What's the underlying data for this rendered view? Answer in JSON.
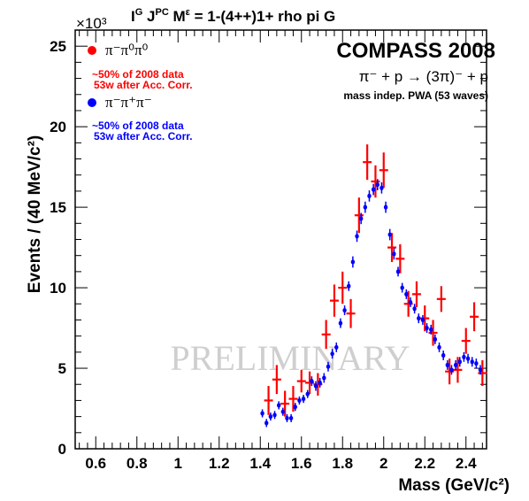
{
  "title": {
    "part1": "I",
    "sup1": "G",
    "part2": " J",
    "sup2": "PC",
    "part3": " M",
    "sup3": "ε",
    "part4": " = 1-(4++)1+ rho pi G"
  },
  "header": {
    "experiment": "COMPASS 2008",
    "reaction": "π⁻ + p  →  (3π)⁻ + p",
    "method": "mass indep. PWA (53 waves)"
  },
  "legend": [
    {
      "label": "π⁻π⁰π⁰",
      "note1": "~50% of 2008 data",
      "note2": "53w after Acc. Corr.",
      "color": "#ff0000"
    },
    {
      "label": "π⁻π⁺π⁻",
      "note1": "~50% of 2008 data",
      "note2": "53w after Acc. Corr.",
      "color": "#0000ff"
    }
  ],
  "watermark": "PRELIMINARY",
  "chart_data": {
    "type": "scatter",
    "xlabel": "Mass (GeV/c²)",
    "ylabel": "Events / (40 MeV/c²)",
    "ymultiplier": "×10³",
    "xlim": [
      0.5,
      2.5
    ],
    "ylim": [
      0,
      26
    ],
    "xticks": [
      0.6,
      0.8,
      1,
      1.2,
      1.4,
      1.6,
      1.8,
      2,
      2.2,
      2.4
    ],
    "xticklabels": [
      "0.6",
      "0.8",
      "1",
      "1.2",
      "1.4",
      "1.6",
      "1.8",
      "2",
      "2.2",
      "2.4"
    ],
    "yticks": [
      0,
      5,
      10,
      15,
      20,
      25
    ],
    "yticklabels": [
      "0",
      "5",
      "10",
      "15",
      "20",
      "25"
    ],
    "series": [
      {
        "name": "π⁻π⁰π⁰",
        "color": "#ff0000",
        "x": [
          1.44,
          1.48,
          1.52,
          1.56,
          1.6,
          1.64,
          1.68,
          1.72,
          1.76,
          1.8,
          1.84,
          1.88,
          1.92,
          1.96,
          2.0,
          2.04,
          2.08,
          2.12,
          2.16,
          2.2,
          2.24,
          2.28,
          2.32,
          2.36,
          2.4,
          2.44,
          2.48
        ],
        "y": [
          3.0,
          4.3,
          2.8,
          3.1,
          4.2,
          4.1,
          4.0,
          7.1,
          9.2,
          10.0,
          8.4,
          14.5,
          17.8,
          16.6,
          17.3,
          12.5,
          11.8,
          9.0,
          9.6,
          8.1,
          7.2,
          9.3,
          4.8,
          4.9,
          6.7,
          8.2,
          4.7
        ],
        "err": [
          0.9,
          0.9,
          0.8,
          0.8,
          0.7,
          0.7,
          0.7,
          0.9,
          1.0,
          1.0,
          0.9,
          1.1,
          1.1,
          1.0,
          1.1,
          0.9,
          0.9,
          0.8,
          0.8,
          0.8,
          0.8,
          0.8,
          0.8,
          0.8,
          0.8,
          0.9,
          0.8
        ]
      },
      {
        "name": "π⁻π⁺π⁻",
        "color": "#0000ff",
        "x": [
          1.41,
          1.43,
          1.45,
          1.47,
          1.49,
          1.51,
          1.53,
          1.55,
          1.57,
          1.59,
          1.61,
          1.63,
          1.65,
          1.67,
          1.69,
          1.71,
          1.73,
          1.75,
          1.77,
          1.79,
          1.81,
          1.83,
          1.85,
          1.87,
          1.89,
          1.91,
          1.93,
          1.95,
          1.97,
          1.99,
          2.01,
          2.03,
          2.05,
          2.07,
          2.09,
          2.11,
          2.13,
          2.15,
          2.17,
          2.19,
          2.21,
          2.23,
          2.25,
          2.27,
          2.29,
          2.31,
          2.33,
          2.35,
          2.37,
          2.39,
          2.41,
          2.43,
          2.45,
          2.47
        ],
        "y": [
          2.2,
          1.6,
          2.0,
          2.1,
          2.7,
          2.3,
          1.9,
          1.9,
          2.6,
          3.0,
          3.1,
          3.4,
          4.2,
          3.9,
          4.1,
          4.4,
          5.1,
          5.9,
          6.3,
          7.8,
          8.6,
          10.1,
          11.6,
          13.2,
          14.3,
          15.0,
          15.7,
          16.1,
          16.4,
          16.2,
          15.0,
          13.3,
          12.1,
          11.0,
          10.0,
          9.6,
          9.1,
          8.7,
          8.1,
          8.0,
          7.5,
          7.4,
          6.8,
          6.3,
          5.8,
          5.2,
          4.9,
          5.2,
          5.4,
          5.7,
          5.6,
          5.4,
          5.3,
          4.9
        ],
        "err": [
          0.25,
          0.25,
          0.25,
          0.25,
          0.25,
          0.25,
          0.25,
          0.25,
          0.25,
          0.25,
          0.25,
          0.25,
          0.3,
          0.3,
          0.3,
          0.3,
          0.3,
          0.3,
          0.3,
          0.3,
          0.3,
          0.3,
          0.35,
          0.35,
          0.35,
          0.35,
          0.35,
          0.35,
          0.35,
          0.35,
          0.35,
          0.35,
          0.35,
          0.3,
          0.3,
          0.3,
          0.3,
          0.3,
          0.3,
          0.3,
          0.3,
          0.3,
          0.3,
          0.3,
          0.3,
          0.3,
          0.3,
          0.3,
          0.3,
          0.3,
          0.3,
          0.3,
          0.3,
          0.3
        ]
      }
    ]
  }
}
